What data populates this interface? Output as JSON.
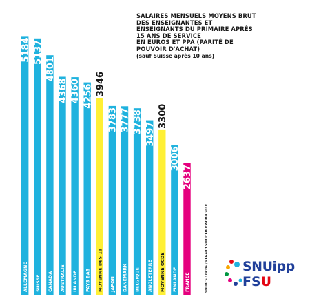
{
  "chart_data": {
    "type": "bar",
    "orientation": "vertical",
    "title_lines": [
      "SALAIRES MENSUELS MOYENS BRUT",
      "DES ENSEIGNANTES ET",
      "ENSEIGNANTS DU PRIMAIRE APRÈS",
      "15 ANS DE SERVICE",
      "EN EUROS ET PPA (PARITÉ DE",
      "POUVOIR D'ACHAT)"
    ],
    "subtitle": "(sauf Suisse après 10 ans)",
    "categories": [
      "ALLEMAGNE",
      "SUISSE",
      "CANADA",
      "AUSTRALIE",
      "IRLANDE",
      "PAYS BAS",
      "MOYENNE DES 11",
      "JAPON",
      "DANEMARK",
      "BELGIQUE",
      "ANGLETERRE",
      "MOYENNE OCDE",
      "FINLANDE",
      "FRANCE"
    ],
    "values": [
      5184,
      5137,
      4801,
      4368,
      4360,
      4256,
      3946,
      3783,
      3777,
      3738,
      3497,
      3300,
      3006,
      2637
    ],
    "value_labels": [
      "5184",
      "5137",
      "4801",
      "4368",
      "4360",
      "4256",
      "3946",
      "3783",
      "3777",
      "3738",
      "3497",
      "3300",
      "3006",
      "2637"
    ],
    "highlight": [
      "normal",
      "normal",
      "normal",
      "normal",
      "normal",
      "normal",
      "average",
      "normal",
      "normal",
      "normal",
      "normal",
      "average",
      "normal",
      "focus"
    ],
    "colors": {
      "normal": "#1fb2de",
      "average": "#fff035",
      "focus": "#e5007e",
      "value_normal": "#ffffff",
      "value_average": "#1a1a1a",
      "value_focus": "#ffffff",
      "label_normal": "#ffffff",
      "label_average": "#1a1a1a",
      "label_focus": "#ffffff"
    },
    "xlabel": "",
    "ylabel": "",
    "ylim": [
      0,
      5300
    ],
    "grid": false,
    "legend": "none"
  },
  "source_note": "SOURCE : OCDE / REGARD SUR L'ÉDUCATION 2018",
  "logo": {
    "word": "SNUipp",
    "sub_main": "FS",
    "sub_accent": "U"
  }
}
